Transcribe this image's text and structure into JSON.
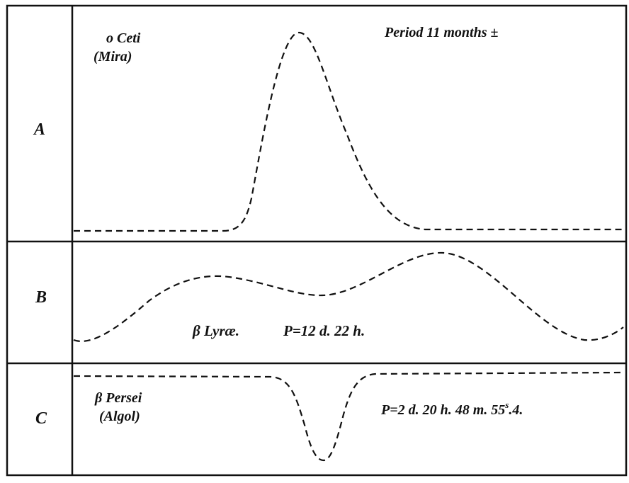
{
  "panels": [
    {
      "label": "A",
      "star": [
        "o Ceti",
        "(Mira)"
      ],
      "period": [
        "Period 11 months ±"
      ]
    },
    {
      "label": "B",
      "star": [
        "β Lyræ."
      ],
      "period": [
        "P=12 d. 22 h."
      ]
    },
    {
      "label": "C",
      "star": [
        "β Persei",
        "(Algol)"
      ],
      "period": [
        "P=2 d. 20 h. 48 m. 55",
        "s",
        ".4."
      ]
    }
  ]
}
